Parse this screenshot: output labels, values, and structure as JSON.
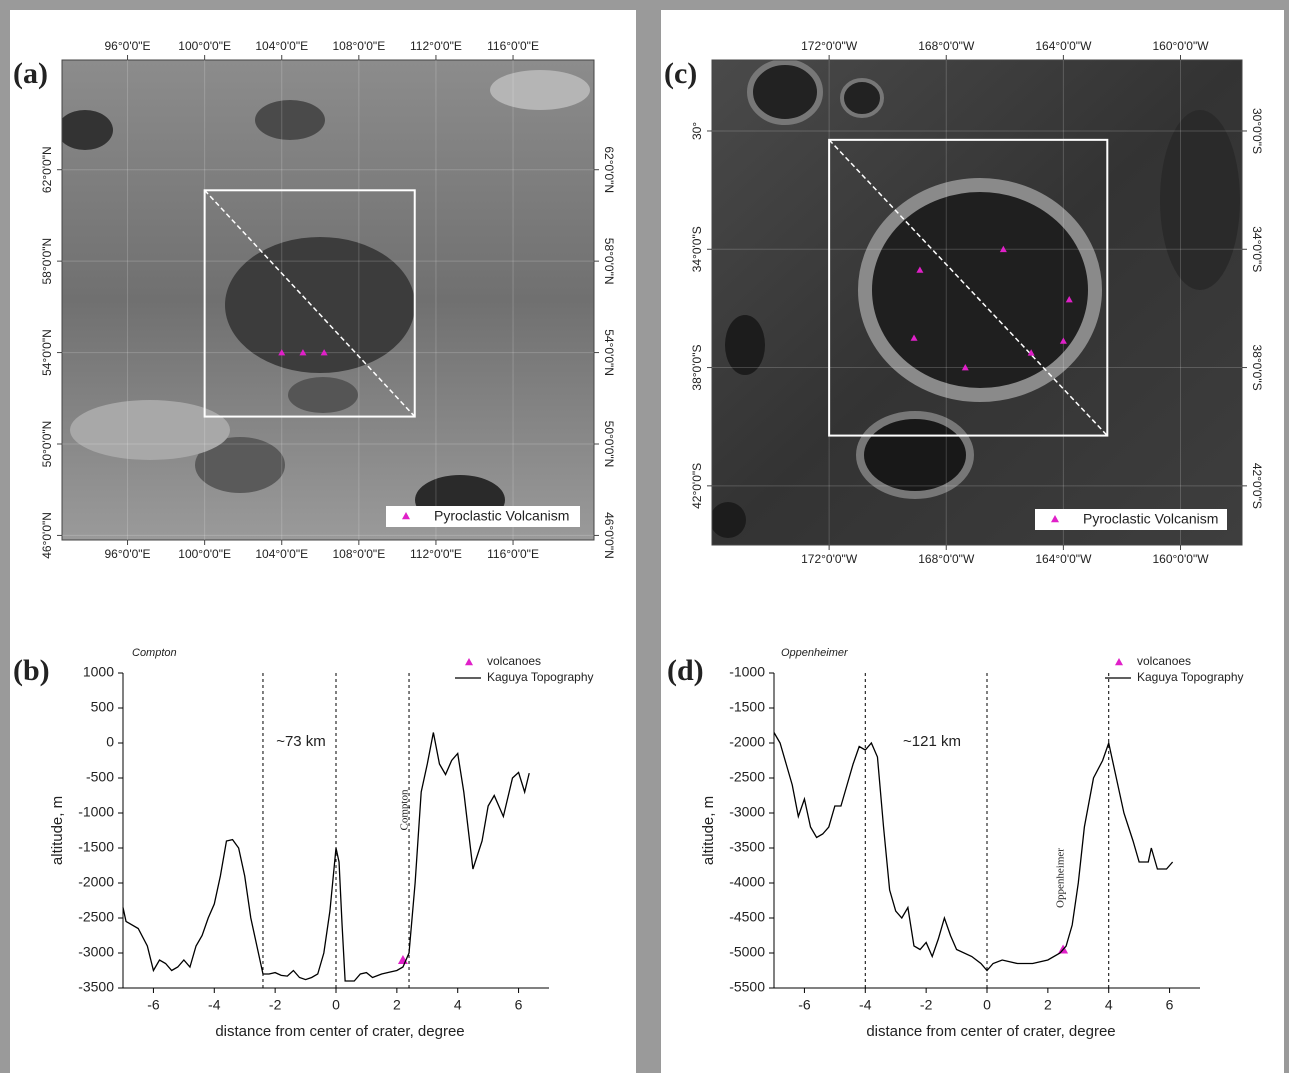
{
  "chart_data": [
    {
      "type": "map",
      "panel_label": "(a)",
      "xlim": [
        92.6,
        120.2
      ],
      "ylim": [
        45.8,
        66.8
      ],
      "xticks": [
        {
          "value": 96,
          "label": "96°0'0\"E"
        },
        {
          "value": 100,
          "label": "100°0'0\"E"
        },
        {
          "value": 104,
          "label": "104°0'0\"E"
        },
        {
          "value": 108,
          "label": "108°0'0\"E"
        },
        {
          "value": 112,
          "label": "112°0'0\"E"
        },
        {
          "value": 116,
          "label": "116°0'0\"E"
        }
      ],
      "yticks": [
        {
          "value": 46,
          "label": "46°0'0\"N"
        },
        {
          "value": 50,
          "label": "50°0'0\"N"
        },
        {
          "value": 54,
          "label": "54°0'0\"N"
        },
        {
          "value": 58,
          "label": "58°0'0\"N"
        },
        {
          "value": 62,
          "label": "62°0'0\"N"
        }
      ],
      "region": {
        "lon": [
          100,
          110.9
        ],
        "lat": [
          61.1,
          51.2
        ]
      },
      "series": [
        {
          "name": "Pyroclastic Volcanism",
          "color": "#e020c8",
          "lon": [
            104.0,
            105.1,
            106.2
          ],
          "lat": [
            54.0,
            54.0,
            54.0
          ]
        }
      ]
    },
    {
      "type": "line",
      "panel_label": "(b)",
      "title": "Compton",
      "xlabel": "distance from center of crater, degree",
      "ylabel": "altitude, m",
      "xlim": [
        -7,
        7
      ],
      "ylim": [
        -3500,
        1000
      ],
      "xticks": [
        -6,
        -4,
        -2,
        0,
        2,
        4,
        6
      ],
      "yticks": [
        -3500,
        -3000,
        -2500,
        -2000,
        -1500,
        -1000,
        -500,
        0,
        500,
        1000
      ],
      "vlines": [
        -2.4,
        0,
        2.4
      ],
      "annotations": [
        "~73 km",
        "Compton"
      ],
      "series": [
        {
          "name": "volcanoes",
          "color": "#e020c8",
          "marker": "triangle",
          "x": [
            2.2
          ],
          "values": [
            -3100
          ]
        },
        {
          "name": "Kaguya Topography",
          "color": "#000000",
          "x": [
            -7,
            -6.9,
            -6.5,
            -6.2,
            -6.0,
            -5.8,
            -5.6,
            -5.4,
            -5.2,
            -5.0,
            -4.8,
            -4.6,
            -4.4,
            -4.2,
            -4.0,
            -3.8,
            -3.6,
            -3.4,
            -3.2,
            -3.0,
            -2.8,
            -2.6,
            -2.4,
            -2.2,
            -2.0,
            -1.8,
            -1.6,
            -1.4,
            -1.2,
            -1.0,
            -0.8,
            -0.6,
            -0.4,
            -0.2,
            0,
            0.1,
            0.2,
            0.3,
            0.6,
            0.8,
            1.0,
            1.2,
            1.5,
            1.8,
            2.0,
            2.2,
            2.4,
            2.6,
            2.8,
            3.0,
            3.2,
            3.4,
            3.6,
            3.8,
            4.0,
            4.2,
            4.5,
            4.8,
            5.0,
            5.2,
            5.5,
            5.8,
            6.0,
            6.2,
            6.35
          ],
          "values": [
            -2350,
            -2550,
            -2650,
            -2900,
            -3250,
            -3100,
            -3150,
            -3250,
            -3200,
            -3100,
            -3200,
            -2900,
            -2750,
            -2500,
            -2300,
            -1900,
            -1400,
            -1380,
            -1500,
            -1900,
            -2500,
            -2900,
            -3300,
            -3300,
            -3280,
            -3320,
            -3330,
            -3250,
            -3350,
            -3380,
            -3350,
            -3300,
            -3000,
            -2400,
            -1500,
            -1700,
            -2600,
            -3400,
            -3400,
            -3300,
            -3280,
            -3350,
            -3300,
            -3270,
            -3250,
            -3200,
            -3000,
            -2000,
            -700,
            -300,
            150,
            -300,
            -450,
            -250,
            -150,
            -700,
            -1800,
            -1400,
            -900,
            -750,
            -1050,
            -500,
            -420,
            -700,
            -430
          ]
        }
      ]
    },
    {
      "type": "map",
      "panel_label": "(c)",
      "xlim": [
        176.0,
        157.9
      ],
      "ylim": [
        44.0,
        27.6
      ],
      "xticks": [
        {
          "value": 172,
          "label": "172°0'0\"W"
        },
        {
          "value": 168,
          "label": "168°0'0\"W"
        },
        {
          "value": 164,
          "label": "164°0'0\"W"
        },
        {
          "value": 160,
          "label": "160°0'0\"W"
        }
      ],
      "yticks": [
        {
          "value": 30,
          "label": "30°0'0\"S"
        },
        {
          "value": 34,
          "label": "34°0'0\"S"
        },
        {
          "value": 38,
          "label": "38°0'0\"S"
        },
        {
          "value": 42,
          "label": "42°0'0\"S"
        }
      ],
      "yticks_left": [
        {
          "value": 30,
          "label": "30°"
        },
        {
          "value": 34,
          "label": "34°0'0\"S"
        },
        {
          "value": 38,
          "label": "38°0'0\"S"
        },
        {
          "value": 42,
          "label": "42°0'0\"S"
        }
      ],
      "region": {
        "lon": [
          172,
          162.5
        ],
        "lat": [
          30.3,
          40.3
        ]
      },
      "series": [
        {
          "name": "Pyroclastic Volcanism",
          "color": "#e020c8",
          "lon": [
            166.05,
            168.9,
            163.8,
            169.1,
            164.0,
            165.1,
            167.35
          ],
          "lat": [
            34.0,
            34.7,
            35.7,
            37.0,
            37.1,
            37.5,
            38.0
          ]
        }
      ]
    },
    {
      "type": "line",
      "panel_label": "(d)",
      "title": "Oppenheimer",
      "xlabel": "distance from center of crater, degree",
      "ylabel": "altitude, m",
      "xlim": [
        -7,
        7
      ],
      "ylim": [
        -5500,
        -1000
      ],
      "xticks": [
        -6,
        -4,
        -2,
        0,
        2,
        4,
        6
      ],
      "yticks": [
        -5500,
        -5000,
        -4500,
        -4000,
        -3500,
        -3000,
        -2500,
        -2000,
        -1500,
        -1000
      ],
      "vlines": [
        -4,
        0,
        4
      ],
      "annotations": [
        "~121 km",
        "Oppenheimer"
      ],
      "series": [
        {
          "name": "volcanoes",
          "color": "#e020c8",
          "marker": "triangle",
          "x": [
            2.5
          ],
          "values": [
            -4950
          ]
        },
        {
          "name": "Kaguya Topography",
          "color": "#000000",
          "x": [
            -7,
            -6.8,
            -6.6,
            -6.4,
            -6.2,
            -6.0,
            -5.8,
            -5.6,
            -5.4,
            -5.2,
            -5.0,
            -4.8,
            -4.6,
            -4.4,
            -4.2,
            -4.0,
            -3.8,
            -3.6,
            -3.4,
            -3.2,
            -3.0,
            -2.8,
            -2.6,
            -2.4,
            -2.2,
            -2.0,
            -1.8,
            -1.6,
            -1.4,
            -1.2,
            -1.0,
            -0.5,
            -0.2,
            0,
            0.2,
            0.5,
            1.0,
            1.5,
            2.0,
            2.4,
            2.6,
            2.8,
            3.0,
            3.2,
            3.5,
            3.8,
            4.0,
            4.2,
            4.5,
            4.8,
            5.0,
            5.3,
            5.4,
            5.6,
            5.9,
            6.1
          ],
          "values": [
            -1850,
            -2000,
            -2300,
            -2600,
            -3050,
            -2800,
            -3200,
            -3350,
            -3300,
            -3200,
            -2900,
            -2900,
            -2600,
            -2300,
            -2050,
            -2100,
            -2000,
            -2200,
            -3200,
            -4100,
            -4400,
            -4500,
            -4350,
            -4900,
            -4950,
            -4850,
            -5050,
            -4800,
            -4500,
            -4750,
            -4950,
            -5050,
            -5150,
            -5250,
            -5150,
            -5100,
            -5150,
            -5150,
            -5100,
            -5000,
            -4900,
            -4600,
            -4000,
            -3200,
            -2500,
            -2250,
            -2000,
            -2400,
            -3000,
            -3400,
            -3700,
            -3700,
            -3500,
            -3800,
            -3800,
            -3700
          ]
        }
      ]
    }
  ]
}
